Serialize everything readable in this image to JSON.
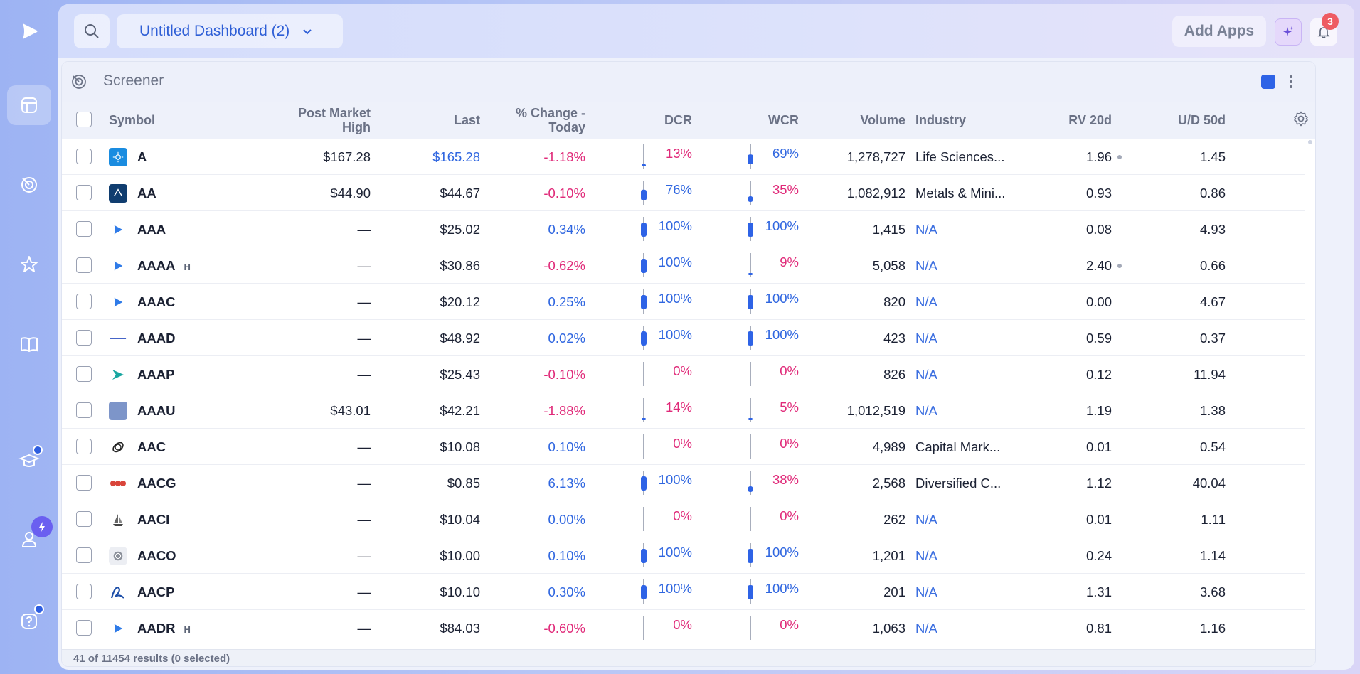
{
  "sidebar": {
    "items": [
      {
        "name": "logo",
        "icon": "play-logo-icon"
      },
      {
        "name": "dashboard",
        "icon": "dashboard-icon",
        "active": true
      },
      {
        "name": "screener",
        "icon": "radar-icon"
      },
      {
        "name": "watchlist",
        "icon": "star-icon"
      },
      {
        "name": "learn",
        "icon": "book-icon"
      },
      {
        "name": "education",
        "icon": "graduation-cap-icon"
      },
      {
        "name": "account",
        "icon": "user-icon"
      },
      {
        "name": "help",
        "icon": "help-icon"
      }
    ]
  },
  "header": {
    "dashboard_title": "Untitled Dashboard (2)",
    "add_apps": "Add Apps",
    "notification_count": "3"
  },
  "widget": {
    "title": "Screener",
    "accent_color": "#2e63e6",
    "columns": {
      "symbol": "Symbol",
      "post_market_high_1": "Post Market",
      "post_market_high_2": "High",
      "last": "Last",
      "pct_change_1": "% Change -",
      "pct_change_2": "Today",
      "dcr": "DCR",
      "wcr": "WCR",
      "volume": "Volume",
      "industry": "Industry",
      "rv20d": "RV 20d",
      "ud50d": "U/D 50d"
    },
    "rows": [
      {
        "symbol": "A",
        "h": "",
        "logo": "A",
        "pmh": "$167.28",
        "last": "$165.28",
        "last_color": "pos",
        "chg": "-1.18%",
        "chg_dir": "neg",
        "dcr": "13%",
        "dcr_dir": "neg",
        "dcr_val": 0.13,
        "wcr": "69%",
        "wcr_dir": "pos",
        "wcr_val": 0.69,
        "volume": "1,278,727",
        "industry": "Life Sciences...",
        "industry_na": false,
        "rv": "1.96",
        "rv_dot": true,
        "ud": "1.45"
      },
      {
        "symbol": "AA",
        "h": "",
        "logo": "AA",
        "pmh": "$44.90",
        "last": "$44.67",
        "last_color": "dark",
        "chg": "-0.10%",
        "chg_dir": "neg",
        "dcr": "76%",
        "dcr_dir": "pos",
        "dcr_val": 0.76,
        "wcr": "35%",
        "wcr_dir": "neg",
        "wcr_val": 0.35,
        "volume": "1,082,912",
        "industry": "Metals & Mini...",
        "industry_na": false,
        "rv": "0.93",
        "rv_dot": false,
        "ud": "0.86"
      },
      {
        "symbol": "AAA",
        "h": "",
        "logo": "play",
        "pmh": "—",
        "last": "$25.02",
        "last_color": "dark",
        "chg": "0.34%",
        "chg_dir": "pos",
        "dcr": "100%",
        "dcr_dir": "pos",
        "dcr_val": 1.0,
        "wcr": "100%",
        "wcr_dir": "pos",
        "wcr_val": 1.0,
        "volume": "1,415",
        "industry": "N/A",
        "industry_na": true,
        "rv": "0.08",
        "rv_dot": false,
        "ud": "4.93"
      },
      {
        "symbol": "AAAA",
        "h": "H",
        "logo": "play",
        "pmh": "—",
        "last": "$30.86",
        "last_color": "dark",
        "chg": "-0.62%",
        "chg_dir": "neg",
        "dcr": "100%",
        "dcr_dir": "pos",
        "dcr_val": 1.0,
        "wcr": "9%",
        "wcr_dir": "neg",
        "wcr_val": 0.09,
        "volume": "5,058",
        "industry": "N/A",
        "industry_na": true,
        "rv": "2.40",
        "rv_dot": true,
        "ud": "0.66"
      },
      {
        "symbol": "AAAC",
        "h": "",
        "logo": "play",
        "pmh": "—",
        "last": "$20.12",
        "last_color": "dark",
        "chg": "0.25%",
        "chg_dir": "pos",
        "dcr": "100%",
        "dcr_dir": "pos",
        "dcr_val": 1.0,
        "wcr": "100%",
        "wcr_dir": "pos",
        "wcr_val": 1.0,
        "volume": "820",
        "industry": "N/A",
        "industry_na": true,
        "rv": "0.00",
        "rv_dot": false,
        "ud": "4.67"
      },
      {
        "symbol": "AAAD",
        "h": "",
        "logo": "line",
        "pmh": "—",
        "last": "$48.92",
        "last_color": "dark",
        "chg": "0.02%",
        "chg_dir": "pos",
        "dcr": "100%",
        "dcr_dir": "pos",
        "dcr_val": 1.0,
        "wcr": "100%",
        "wcr_dir": "pos",
        "wcr_val": 1.0,
        "volume": "423",
        "industry": "N/A",
        "industry_na": true,
        "rv": "0.59",
        "rv_dot": false,
        "ud": "0.37"
      },
      {
        "symbol": "AAAP",
        "h": "",
        "logo": "arrow",
        "pmh": "—",
        "last": "$25.43",
        "last_color": "dark",
        "chg": "-0.10%",
        "chg_dir": "neg",
        "dcr": "0%",
        "dcr_dir": "neg",
        "dcr_val": 0.0,
        "wcr": "0%",
        "wcr_dir": "neg",
        "wcr_val": 0.0,
        "volume": "826",
        "industry": "N/A",
        "industry_na": true,
        "rv": "0.12",
        "rv_dot": false,
        "ud": "11.94"
      },
      {
        "symbol": "AAAU",
        "h": "",
        "logo": "box",
        "pmh": "$43.01",
        "last": "$42.21",
        "last_color": "dark",
        "chg": "-1.88%",
        "chg_dir": "neg",
        "dcr": "14%",
        "dcr_dir": "neg",
        "dcr_val": 0.14,
        "wcr": "5%",
        "wcr_dir": "neg",
        "wcr_val": 0.05,
        "volume": "1,012,519",
        "industry": "N/A",
        "industry_na": true,
        "rv": "1.19",
        "rv_dot": false,
        "ud": "1.38"
      },
      {
        "symbol": "AAC",
        "h": "",
        "logo": "orbit",
        "pmh": "—",
        "last": "$10.08",
        "last_color": "dark",
        "chg": "0.10%",
        "chg_dir": "pos",
        "dcr": "0%",
        "dcr_dir": "neg",
        "dcr_val": 0.0,
        "wcr": "0%",
        "wcr_dir": "neg",
        "wcr_val": 0.0,
        "volume": "4,989",
        "industry": "Capital Mark...",
        "industry_na": false,
        "rv": "0.01",
        "rv_dot": false,
        "ud": "0.54"
      },
      {
        "symbol": "AACG",
        "h": "",
        "logo": "dots",
        "pmh": "—",
        "last": "$0.85",
        "last_color": "dark",
        "chg": "6.13%",
        "chg_dir": "pos",
        "dcr": "100%",
        "dcr_dir": "pos",
        "dcr_val": 1.0,
        "wcr": "38%",
        "wcr_dir": "neg",
        "wcr_val": 0.38,
        "volume": "2,568",
        "industry": "Diversified C...",
        "industry_na": false,
        "rv": "1.12",
        "rv_dot": false,
        "ud": "40.04"
      },
      {
        "symbol": "AACI",
        "h": "",
        "logo": "ship",
        "pmh": "—",
        "last": "$10.04",
        "last_color": "dark",
        "chg": "0.00%",
        "chg_dir": "pos",
        "dcr": "0%",
        "dcr_dir": "neg",
        "dcr_val": 0.0,
        "wcr": "0%",
        "wcr_dir": "neg",
        "wcr_val": 0.0,
        "volume": "262",
        "industry": "N/A",
        "industry_na": true,
        "rv": "0.01",
        "rv_dot": false,
        "ud": "1.11"
      },
      {
        "symbol": "AACO",
        "h": "",
        "logo": "circle",
        "pmh": "—",
        "last": "$10.00",
        "last_color": "dark",
        "chg": "0.10%",
        "chg_dir": "pos",
        "dcr": "100%",
        "dcr_dir": "pos",
        "dcr_val": 1.0,
        "wcr": "100%",
        "wcr_dir": "pos",
        "wcr_val": 1.0,
        "volume": "1,201",
        "industry": "N/A",
        "industry_na": true,
        "rv": "0.24",
        "rv_dot": false,
        "ud": "1.14"
      },
      {
        "symbol": "AACP",
        "h": "",
        "logo": "script",
        "pmh": "—",
        "last": "$10.10",
        "last_color": "dark",
        "chg": "0.30%",
        "chg_dir": "pos",
        "dcr": "100%",
        "dcr_dir": "pos",
        "dcr_val": 1.0,
        "wcr": "100%",
        "wcr_dir": "pos",
        "wcr_val": 1.0,
        "volume": "201",
        "industry": "N/A",
        "industry_na": true,
        "rv": "1.31",
        "rv_dot": false,
        "ud": "3.68"
      },
      {
        "symbol": "AADR",
        "h": "H",
        "logo": "play",
        "pmh": "—",
        "last": "$84.03",
        "last_color": "dark",
        "chg": "-0.60%",
        "chg_dir": "neg",
        "dcr": "0%",
        "dcr_dir": "neg",
        "dcr_val": 0.0,
        "wcr": "0%",
        "wcr_dir": "neg",
        "wcr_val": 0.0,
        "volume": "1,063",
        "industry": "N/A",
        "industry_na": true,
        "rv": "0.81",
        "rv_dot": false,
        "ud": "1.16"
      }
    ],
    "footer": "41 of 11454 results (0 selected)"
  }
}
